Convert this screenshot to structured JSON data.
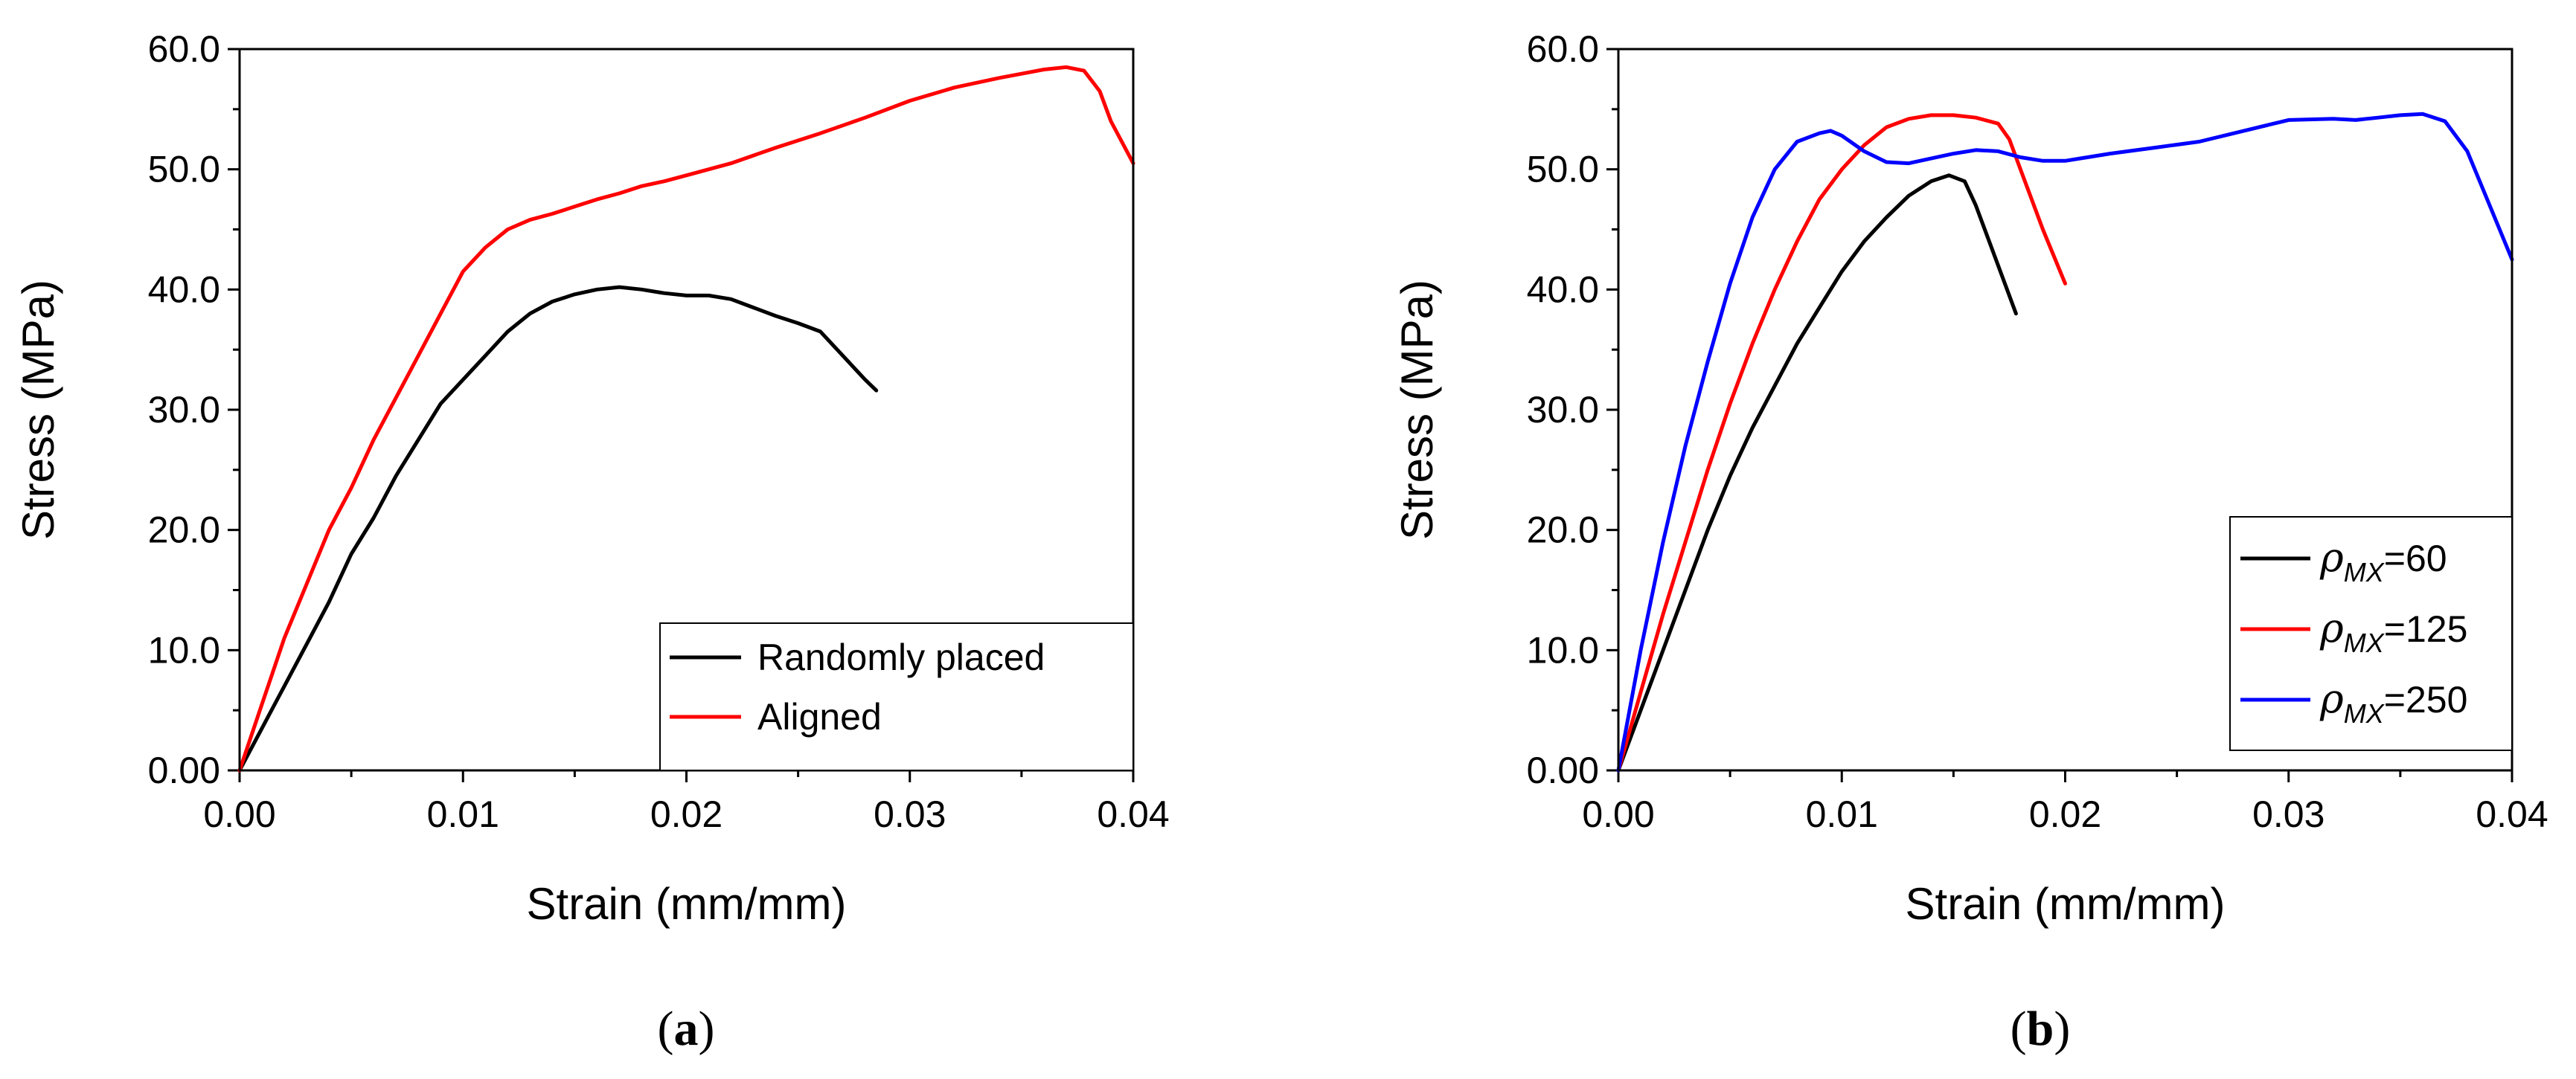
{
  "chart_data": [
    {
      "type": "line",
      "panel_label": "a",
      "xlabel": "Strain (mm/mm)",
      "ylabel": "Stress (MPa)",
      "xlim": [
        0,
        0.04
      ],
      "ylim": [
        0,
        60
      ],
      "xticks": [
        "0.00",
        "0.01",
        "0.02",
        "0.03",
        "0.04"
      ],
      "yticks": [
        "0.00",
        "10.0",
        "20.0",
        "30.0",
        "40.0",
        "50.0",
        "60.0"
      ],
      "legend_position": "bottom-right",
      "series": [
        {
          "name": "Randomly placed",
          "color": "#000000",
          "x": [
            0,
            0.001,
            0.002,
            0.003,
            0.004,
            0.005,
            0.006,
            0.007,
            0.008,
            0.009,
            0.01,
            0.011,
            0.012,
            0.013,
            0.014,
            0.015,
            0.016,
            0.017,
            0.018,
            0.019,
            0.02,
            0.021,
            0.022,
            0.023,
            0.024,
            0.025,
            0.026,
            0.027,
            0.028,
            0.0285
          ],
          "y": [
            0,
            3.5,
            7.0,
            10.5,
            14.0,
            18.0,
            21.0,
            24.5,
            27.5,
            30.5,
            32.5,
            34.5,
            36.5,
            38.0,
            39.0,
            39.6,
            40.0,
            40.2,
            40.0,
            39.7,
            39.5,
            39.5,
            39.2,
            38.5,
            37.8,
            37.2,
            36.5,
            34.5,
            32.5,
            31.6
          ]
        },
        {
          "name": "Aligned",
          "color": "#ff0000",
          "x": [
            0,
            0.001,
            0.002,
            0.003,
            0.004,
            0.005,
            0.006,
            0.007,
            0.008,
            0.009,
            0.01,
            0.011,
            0.012,
            0.013,
            0.014,
            0.015,
            0.016,
            0.017,
            0.018,
            0.019,
            0.02,
            0.022,
            0.024,
            0.026,
            0.028,
            0.03,
            0.032,
            0.034,
            0.036,
            0.037,
            0.0378,
            0.0385,
            0.039,
            0.04
          ],
          "y": [
            0,
            5.5,
            11.0,
            15.5,
            20.0,
            23.5,
            27.5,
            31.0,
            34.5,
            38.0,
            41.5,
            43.5,
            45.0,
            45.8,
            46.3,
            46.9,
            47.5,
            48.0,
            48.6,
            49.0,
            49.5,
            50.5,
            51.8,
            53.0,
            54.3,
            55.7,
            56.8,
            57.6,
            58.3,
            58.5,
            58.2,
            56.5,
            54.0,
            50.5
          ]
        }
      ]
    },
    {
      "type": "line",
      "panel_label": "b",
      "xlabel": "Strain (mm/mm)",
      "ylabel": "Stress (MPa)",
      "xlim": [
        0,
        0.04
      ],
      "ylim": [
        0,
        60
      ],
      "xticks": [
        "0.00",
        "0.01",
        "0.02",
        "0.03",
        "0.04"
      ],
      "yticks": [
        "0.00",
        "10.0",
        "20.0",
        "30.0",
        "40.0",
        "50.0",
        "60.0"
      ],
      "legend_position": "bottom-right",
      "series": [
        {
          "name": "ρMX=60",
          "symbol": "ρ",
          "subscript": "MX",
          "value_text": "=60",
          "color": "#000000",
          "x": [
            0,
            0.001,
            0.002,
            0.003,
            0.004,
            0.005,
            0.006,
            0.007,
            0.008,
            0.009,
            0.01,
            0.011,
            0.012,
            0.013,
            0.014,
            0.0148,
            0.0155,
            0.016,
            0.017,
            0.0178
          ],
          "y": [
            0,
            5.0,
            10.0,
            15.0,
            20.0,
            24.5,
            28.5,
            32.0,
            35.5,
            38.5,
            41.5,
            44.0,
            46.0,
            47.8,
            49.0,
            49.5,
            49.0,
            47.0,
            42.0,
            38.0
          ]
        },
        {
          "name": "ρMX=125",
          "symbol": "ρ",
          "subscript": "MX",
          "value_text": "=125",
          "color": "#ff0000",
          "x": [
            0,
            0.001,
            0.002,
            0.003,
            0.004,
            0.005,
            0.006,
            0.007,
            0.008,
            0.009,
            0.01,
            0.011,
            0.012,
            0.013,
            0.014,
            0.015,
            0.016,
            0.017,
            0.0175,
            0.018,
            0.019,
            0.02
          ],
          "y": [
            0,
            6.5,
            13.0,
            19.0,
            25.0,
            30.5,
            35.5,
            40.0,
            44.0,
            47.5,
            50.0,
            52.0,
            53.5,
            54.2,
            54.5,
            54.5,
            54.3,
            53.8,
            52.5,
            50.0,
            45.0,
            40.5
          ]
        },
        {
          "name": "ρMX=250",
          "symbol": "ρ",
          "subscript": "MX",
          "value_text": "=250",
          "color": "#0000ff",
          "x": [
            0,
            0.001,
            0.002,
            0.003,
            0.004,
            0.005,
            0.006,
            0.007,
            0.008,
            0.009,
            0.0095,
            0.01,
            0.011,
            0.012,
            0.013,
            0.014,
            0.015,
            0.016,
            0.017,
            0.018,
            0.019,
            0.02,
            0.021,
            0.022,
            0.024,
            0.026,
            0.028,
            0.03,
            0.032,
            0.033,
            0.034,
            0.035,
            0.036,
            0.037,
            0.038,
            0.039,
            0.04
          ],
          "y": [
            0,
            10.0,
            19.0,
            27.0,
            34.0,
            40.5,
            46.0,
            50.0,
            52.3,
            53.0,
            53.2,
            52.8,
            51.5,
            50.6,
            50.5,
            50.9,
            51.3,
            51.6,
            51.5,
            51.0,
            50.7,
            50.7,
            51.0,
            51.3,
            51.8,
            52.3,
            53.2,
            54.1,
            54.2,
            54.1,
            54.3,
            54.5,
            54.6,
            54.0,
            51.5,
            47.0,
            42.5
          ]
        }
      ]
    }
  ]
}
